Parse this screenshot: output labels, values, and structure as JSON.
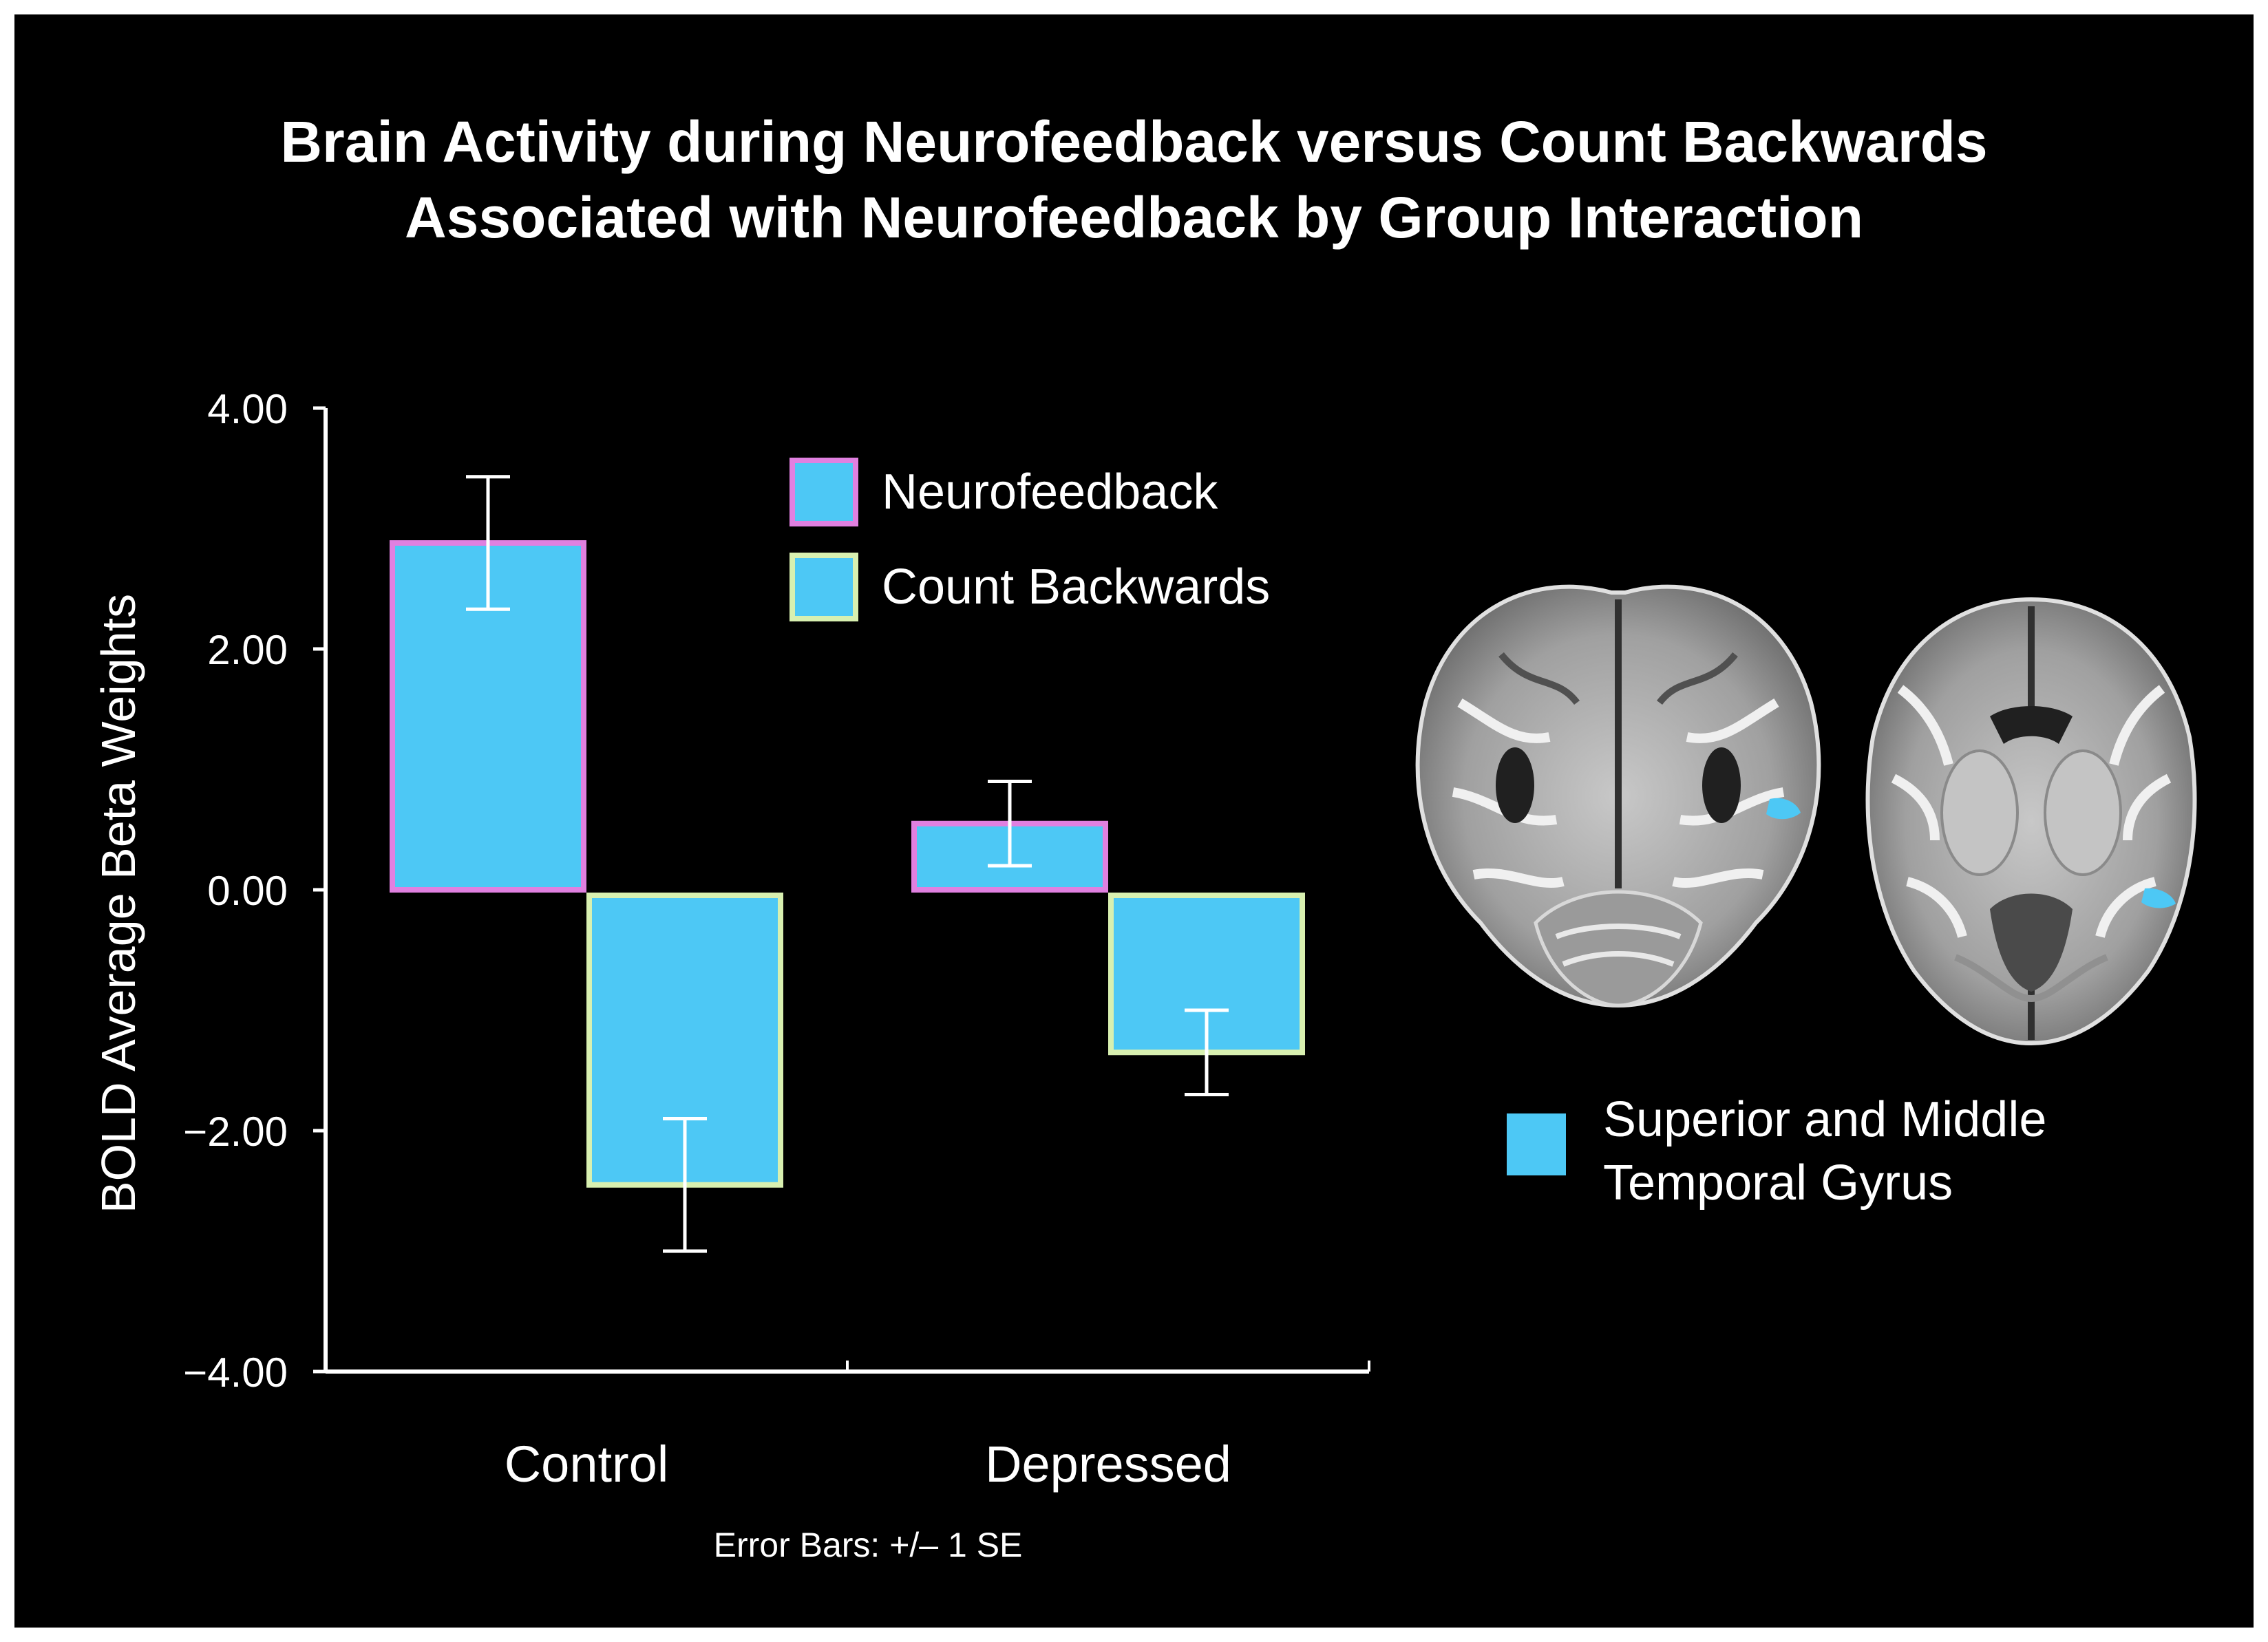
{
  "title_lines": [
    "Brain Activity during Neurofeedback versus Count Backwards",
    "Associated with Neurofeedback by Group Interaction"
  ],
  "footnote": "Error Bars: +/– 1 SE",
  "brain_legend": {
    "lines": [
      "Superior and Middle",
      "Temporal Gyrus"
    ],
    "color": "#4dc8f5",
    "icon": "brain-slice-image"
  },
  "chart_data": {
    "type": "bar",
    "categories": [
      "Control",
      "Depressed"
    ],
    "ylabel": "BOLD Average Beta Weights",
    "xlabel": "",
    "ylim": [
      -4,
      4
    ],
    "yticks": [
      4,
      2,
      0,
      -2,
      -4
    ],
    "ytick_labels": [
      "4.00",
      "2.00",
      "0.00",
      "−2.00",
      "−4.00"
    ],
    "series": [
      {
        "name": "Neurofeedback",
        "values": [
          2.88,
          0.55
        ],
        "errors": [
          0.55,
          0.35
        ],
        "fill": "#4dc8f5",
        "border": "#e080e0"
      },
      {
        "name": "Count Backwards",
        "values": [
          -2.45,
          -1.35
        ],
        "errors": [
          0.55,
          0.35
        ],
        "fill": "#4dc8f5",
        "border": "#d8f0b0"
      }
    ],
    "legend_position": "top-center"
  }
}
